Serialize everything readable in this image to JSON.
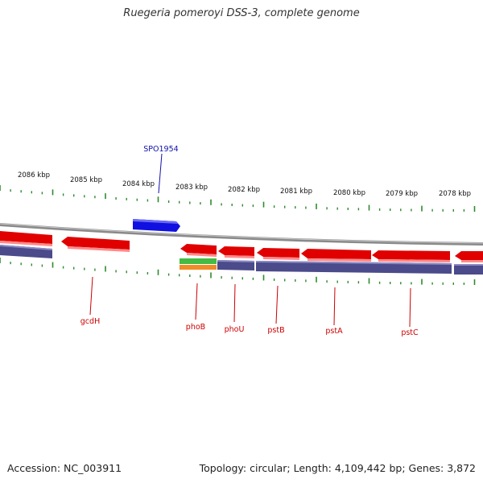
{
  "title": "Ruegeria pomeroyi DSS-3, complete genome",
  "footer": {
    "accession": "Accession: NC_003911",
    "summary": "Topology: circular; Length: 4,109,442 bp; Genes: 3,872"
  },
  "colors": {
    "forward_gene": "#1010e0",
    "reverse_gene": "#e00000",
    "cds_band": "#4b4a8a",
    "backbone": "#8a8a8a",
    "ticks": "#2e8a2e",
    "label_red": "#cc0000",
    "label_blue": "#1010aa",
    "green_feature": "#44bb44",
    "orange_feature": "#f08c28"
  },
  "scale_labels": [
    "2086 kbp",
    "2085 kbp",
    "2084 kbp",
    "2083 kbp",
    "2082 kbp",
    "2081 kbp",
    "2080 kbp",
    "2079 kbp",
    "2078 kbp"
  ],
  "gene_labels": [
    {
      "name": "SPO1954",
      "strand": "forward"
    },
    {
      "name": "gcdH",
      "strand": "reverse"
    },
    {
      "name": "phoB",
      "strand": "reverse"
    },
    {
      "name": "phoU",
      "strand": "reverse"
    },
    {
      "name": "pstB",
      "strand": "reverse"
    },
    {
      "name": "pstA",
      "strand": "reverse"
    },
    {
      "name": "pstC",
      "strand": "reverse"
    }
  ]
}
